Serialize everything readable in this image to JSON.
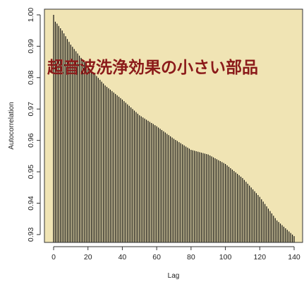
{
  "chart_data": {
    "type": "bar",
    "subtype": "autocorrelation-lag-plot",
    "title": "",
    "overlay_text": "超音波洗浄効果の小さい部品",
    "xlabel": "Lag",
    "ylabel": "Autocorrelation",
    "xlim": [
      0,
      142
    ],
    "ylim": [
      0.9275,
      1.0018
    ],
    "x_ticks": [
      0,
      20,
      40,
      60,
      80,
      100,
      120,
      140
    ],
    "y_ticks": [
      0.93,
      0.94,
      0.95,
      0.96,
      0.97,
      0.98,
      0.99,
      1.0
    ],
    "x_tick_labels": [
      "0",
      "20",
      "40",
      "60",
      "80",
      "100",
      "120",
      "140"
    ],
    "y_tick_labels": [
      "0.93",
      "0.94",
      "0.95",
      "0.96",
      "0.97",
      "0.98",
      "0.99",
      "1.00"
    ],
    "grid": false,
    "lag_first": 0,
    "lag_last": 140,
    "values_key_lags": [
      [
        0,
        1.0
      ],
      [
        1,
        0.9978
      ],
      [
        2,
        0.9972
      ],
      [
        5,
        0.995
      ],
      [
        10,
        0.9905
      ],
      [
        20,
        0.9835
      ],
      [
        30,
        0.9775
      ],
      [
        40,
        0.973
      ],
      [
        50,
        0.968
      ],
      [
        60,
        0.9645
      ],
      [
        70,
        0.9605
      ],
      [
        80,
        0.957
      ],
      [
        90,
        0.9555
      ],
      [
        100,
        0.9525
      ],
      [
        110,
        0.948
      ],
      [
        120,
        0.942
      ],
      [
        130,
        0.9345
      ],
      [
        140,
        0.9295
      ]
    ],
    "colors": {
      "plot_background": "#F0E4B4",
      "bar": "#111111",
      "overlay_text": "#8B1A1A",
      "axis": "#333333"
    }
  }
}
